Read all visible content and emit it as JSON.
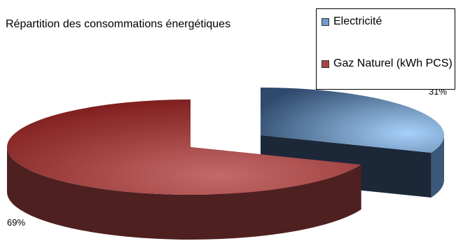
{
  "chart_data": {
    "type": "pie",
    "title": "Répartition des consommations énergétiques",
    "categories": [
      "Electricité",
      "Gaz Naturel (kWh PCS)"
    ],
    "values": [
      31,
      69
    ],
    "value_labels": [
      "31%",
      "69%"
    ],
    "colors": [
      "#6f9ccc",
      "#a84444"
    ],
    "legend": "top-right"
  }
}
